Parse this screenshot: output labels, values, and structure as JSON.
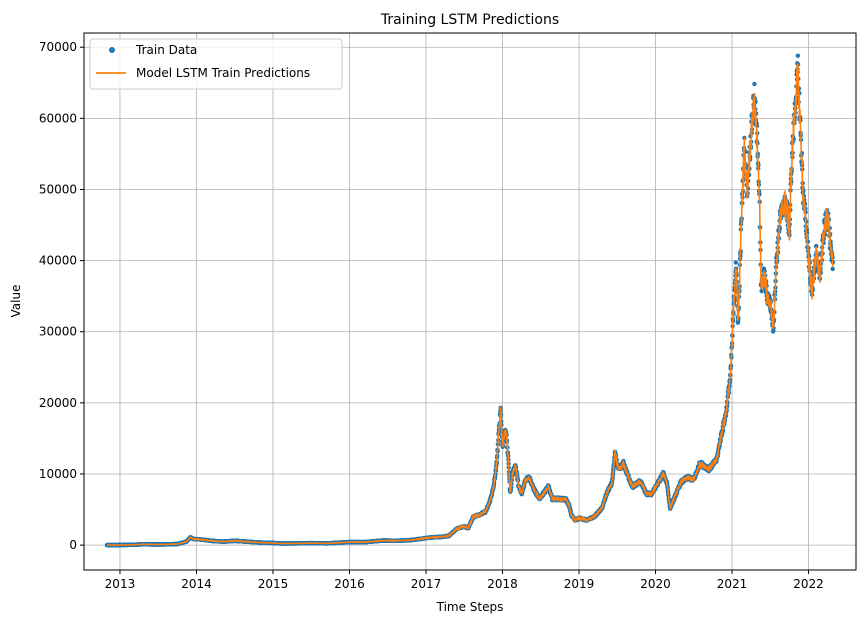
{
  "chart_data": {
    "type": "line",
    "title": "Training LSTM Predictions",
    "xlabel": "Time Steps",
    "ylabel": "Value",
    "xlim": [
      2012.53,
      2022.62
    ],
    "ylim": [
      -3500,
      72000
    ],
    "x_ticks": [
      "2013",
      "2014",
      "2015",
      "2016",
      "2017",
      "2018",
      "2019",
      "2020",
      "2021",
      "2022"
    ],
    "y_ticks": [
      0,
      10000,
      20000,
      30000,
      40000,
      50000,
      60000,
      70000
    ],
    "y_tick_labels": [
      "0",
      "10000",
      "20000",
      "30000",
      "40000",
      "50000",
      "60000",
      "70000"
    ],
    "grid": true,
    "legend_position": "upper-left",
    "series": [
      {
        "name": "Train Data",
        "style": "markers",
        "color": "#1f77b4"
      },
      {
        "name": "Model LSTM Train Predictions",
        "style": "line",
        "color": "#ff7f0e"
      }
    ],
    "anchors": [
      [
        2012.83,
        11
      ],
      [
        2013.0,
        13
      ],
      [
        2013.2,
        50
      ],
      [
        2013.3,
        130
      ],
      [
        2013.4,
        100
      ],
      [
        2013.55,
        90
      ],
      [
        2013.75,
        150
      ],
      [
        2013.87,
        500
      ],
      [
        2013.92,
        1100
      ],
      [
        2013.96,
        850
      ],
      [
        2014.05,
        800
      ],
      [
        2014.2,
        600
      ],
      [
        2014.35,
        480
      ],
      [
        2014.5,
        600
      ],
      [
        2014.7,
        450
      ],
      [
        2014.85,
        350
      ],
      [
        2015.0,
        300
      ],
      [
        2015.1,
        230
      ],
      [
        2015.3,
        240
      ],
      [
        2015.5,
        280
      ],
      [
        2015.7,
        240
      ],
      [
        2015.85,
        330
      ],
      [
        2016.0,
        430
      ],
      [
        2016.2,
        420
      ],
      [
        2016.45,
        650
      ],
      [
        2016.6,
        600
      ],
      [
        2016.8,
        700
      ],
      [
        2016.95,
        900
      ],
      [
        2017.0,
        1000
      ],
      [
        2017.1,
        1100
      ],
      [
        2017.2,
        1150
      ],
      [
        2017.3,
        1300
      ],
      [
        2017.4,
        2300
      ],
      [
        2017.5,
        2600
      ],
      [
        2017.55,
        2400
      ],
      [
        2017.62,
        4000
      ],
      [
        2017.7,
        4300
      ],
      [
        2017.78,
        4700
      ],
      [
        2017.83,
        6000
      ],
      [
        2017.88,
        8000
      ],
      [
        2017.92,
        11000
      ],
      [
        2017.96,
        17000
      ],
      [
        2017.975,
        19300
      ],
      [
        2018.0,
        14000
      ],
      [
        2018.04,
        16500
      ],
      [
        2018.08,
        11500
      ],
      [
        2018.1,
        7200
      ],
      [
        2018.13,
        10000
      ],
      [
        2018.17,
        11200
      ],
      [
        2018.21,
        8300
      ],
      [
        2018.25,
        7200
      ],
      [
        2018.3,
        9200
      ],
      [
        2018.35,
        9500
      ],
      [
        2018.4,
        8100
      ],
      [
        2018.48,
        6500
      ],
      [
        2018.55,
        7500
      ],
      [
        2018.6,
        8200
      ],
      [
        2018.65,
        6500
      ],
      [
        2018.75,
        6500
      ],
      [
        2018.83,
        6400
      ],
      [
        2018.87,
        5600
      ],
      [
        2018.9,
        4200
      ],
      [
        2018.95,
        3500
      ],
      [
        2019.0,
        3800
      ],
      [
        2019.1,
        3500
      ],
      [
        2019.2,
        4000
      ],
      [
        2019.3,
        5200
      ],
      [
        2019.37,
        7500
      ],
      [
        2019.43,
        8700
      ],
      [
        2019.47,
        12800
      ],
      [
        2019.52,
        10500
      ],
      [
        2019.58,
        11500
      ],
      [
        2019.63,
        10000
      ],
      [
        2019.7,
        8200
      ],
      [
        2019.8,
        9000
      ],
      [
        2019.88,
        7200
      ],
      [
        2019.95,
        7200
      ],
      [
        2020.03,
        8700
      ],
      [
        2020.1,
        10000
      ],
      [
        2020.15,
        8700
      ],
      [
        2020.19,
        5200
      ],
      [
        2020.25,
        6700
      ],
      [
        2020.33,
        8800
      ],
      [
        2020.42,
        9500
      ],
      [
        2020.5,
        9200
      ],
      [
        2020.58,
        11500
      ],
      [
        2020.7,
        10700
      ],
      [
        2020.8,
        12000
      ],
      [
        2020.85,
        15000
      ],
      [
        2020.92,
        18500
      ],
      [
        2020.98,
        24000
      ],
      [
        2021.02,
        33000
      ],
      [
        2021.05,
        40000
      ],
      [
        2021.08,
        31000
      ],
      [
        2021.12,
        45000
      ],
      [
        2021.16,
        56000
      ],
      [
        2021.2,
        50000
      ],
      [
        2021.25,
        58000
      ],
      [
        2021.29,
        63500
      ],
      [
        2021.34,
        55000
      ],
      [
        2021.36,
        48000
      ],
      [
        2021.38,
        36000
      ],
      [
        2021.42,
        38000
      ],
      [
        2021.46,
        35000
      ],
      [
        2021.5,
        34000
      ],
      [
        2021.54,
        30500
      ],
      [
        2021.58,
        40000
      ],
      [
        2021.63,
        46000
      ],
      [
        2021.68,
        48000
      ],
      [
        2021.72,
        47000
      ],
      [
        2021.75,
        44000
      ],
      [
        2021.78,
        54000
      ],
      [
        2021.82,
        61000
      ],
      [
        2021.86,
        67000
      ],
      [
        2021.9,
        57000
      ],
      [
        2021.93,
        49000
      ],
      [
        2021.96,
        46000
      ],
      [
        2022.0,
        41000
      ],
      [
        2022.04,
        35500
      ],
      [
        2022.1,
        41000
      ],
      [
        2022.15,
        38000
      ],
      [
        2022.2,
        44000
      ],
      [
        2022.25,
        47000
      ],
      [
        2022.3,
        40000
      ],
      [
        2022.32,
        39500
      ]
    ]
  }
}
